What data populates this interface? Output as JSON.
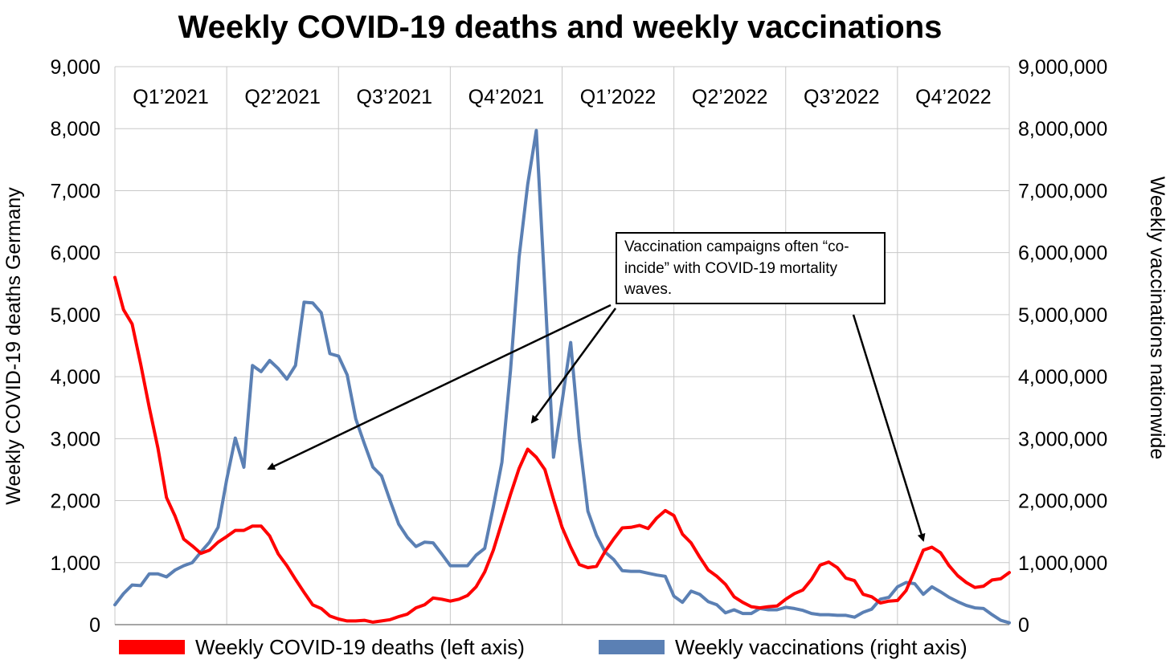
{
  "chart_data": {
    "type": "line",
    "title": "Weekly COVID-19 deaths and weekly vaccinations",
    "ylabel_left": "Weekly COVID-19 deaths Germany",
    "ylabel_right": "Weekly vaccinations nationwide",
    "ylim_left": [
      0,
      9000
    ],
    "ylim_right": [
      0,
      9000000
    ],
    "yticks_left": [
      0,
      1000,
      2000,
      3000,
      4000,
      5000,
      6000,
      7000,
      8000,
      9000
    ],
    "yticks_right": [
      0,
      1000000,
      2000000,
      3000000,
      4000000,
      5000000,
      6000000,
      7000000,
      8000000,
      9000000
    ],
    "ytick_labels_left": [
      "0",
      "1,000",
      "2,000",
      "3,000",
      "4,000",
      "5,000",
      "6,000",
      "7,000",
      "8,000",
      "9,000"
    ],
    "ytick_labels_right": [
      "0",
      "1,000,000",
      "2,000,000",
      "3,000,000",
      "4,000,000",
      "5,000,000",
      "6,000,000",
      "7,000,000",
      "8,000,000",
      "9,000,000"
    ],
    "quarters": [
      "Q1’2021",
      "Q2’2021",
      "Q3’2021",
      "Q4’2021",
      "Q1’2022",
      "Q2’2022",
      "Q3’2022",
      "Q4’2022"
    ],
    "grid": true,
    "legend_position": "bottom",
    "series": [
      {
        "name": "Weekly COVID-19 deaths (left axis)",
        "axis": "left",
        "color": "#ff0000",
        "x_week": [
          0,
          1,
          2,
          3,
          4,
          5,
          6,
          7,
          8,
          9,
          10,
          11,
          12,
          13,
          14,
          15,
          16,
          17,
          18,
          19,
          20,
          21,
          22,
          23,
          24,
          25,
          26,
          27,
          28,
          29,
          30,
          31,
          32,
          33,
          34,
          35,
          36,
          37,
          38,
          39,
          40,
          41,
          42,
          43,
          44,
          45,
          46,
          47,
          48,
          49,
          50,
          51,
          52,
          53,
          54,
          55,
          56,
          57,
          58,
          59,
          60,
          61,
          62,
          63,
          64,
          65,
          66,
          67,
          68,
          69,
          70,
          71,
          72,
          73,
          74,
          75,
          76,
          77,
          78,
          79,
          80,
          81,
          82,
          83,
          84,
          85,
          86,
          87,
          88,
          89,
          90,
          91,
          92,
          93,
          94,
          95,
          96,
          97,
          98,
          99,
          100,
          101,
          102,
          103,
          104
        ],
        "values": [
          5600,
          5080,
          4850,
          4200,
          3500,
          2850,
          2050,
          1750,
          1380,
          1270,
          1150,
          1200,
          1330,
          1420,
          1520,
          1520,
          1590,
          1590,
          1430,
          1140,
          950,
          730,
          520,
          320,
          260,
          140,
          90,
          60,
          60,
          70,
          40,
          60,
          80,
          130,
          170,
          270,
          320,
          430,
          410,
          380,
          410,
          470,
          610,
          850,
          1200,
          1650,
          2100,
          2520,
          2830,
          2700,
          2500,
          2020,
          1570,
          1250,
          970,
          920,
          940,
          1180,
          1380,
          1560,
          1570,
          1600,
          1550,
          1720,
          1840,
          1760,
          1460,
          1320,
          1090,
          880,
          780,
          650,
          450,
          360,
          290,
          270,
          290,
          300,
          410,
          500,
          560,
          730,
          960,
          1010,
          920,
          750,
          710,
          490,
          450,
          350,
          380,
          390,
          550,
          870,
          1200,
          1250,
          1160,
          950,
          790,
          680,
          600,
          620,
          720,
          740,
          840
        ]
      },
      {
        "name": "Weekly vaccinations (right axis)",
        "axis": "right",
        "color": "#5b80b4",
        "x_week": [
          0,
          1,
          2,
          3,
          4,
          5,
          6,
          7,
          8,
          9,
          10,
          11,
          12,
          13,
          14,
          15,
          16,
          17,
          18,
          19,
          20,
          21,
          22,
          23,
          24,
          25,
          26,
          27,
          28,
          29,
          30,
          31,
          32,
          33,
          34,
          35,
          36,
          37,
          38,
          39,
          40,
          41,
          42,
          43,
          44,
          45,
          46,
          47,
          48,
          49,
          50,
          51,
          52,
          53,
          54,
          55,
          56,
          57,
          58,
          59,
          60,
          61,
          62,
          63,
          64,
          65,
          66,
          67,
          68,
          69,
          70,
          71,
          72,
          73,
          74,
          75,
          76,
          77,
          78,
          79,
          80,
          81,
          82,
          83,
          84,
          85,
          86,
          87,
          88,
          89,
          90,
          91,
          92,
          93,
          94,
          95,
          96,
          97,
          98,
          99,
          100,
          101,
          102,
          103,
          104
        ],
        "values": [
          320000,
          500000,
          640000,
          630000,
          820000,
          820000,
          770000,
          880000,
          950000,
          1000000,
          1170000,
          1330000,
          1570000,
          2340000,
          3010000,
          2540000,
          4180000,
          4080000,
          4260000,
          4130000,
          3960000,
          4180000,
          5200000,
          5190000,
          5030000,
          4370000,
          4330000,
          4030000,
          3320000,
          2920000,
          2540000,
          2400000,
          2000000,
          1620000,
          1410000,
          1260000,
          1330000,
          1320000,
          1140000,
          950000,
          950000,
          950000,
          1120000,
          1230000,
          1900000,
          2620000,
          4100000,
          5930000,
          7100000,
          7970000,
          5400000,
          2700000,
          3600000,
          4550000,
          3000000,
          1830000,
          1440000,
          1170000,
          1050000,
          870000,
          860000,
          860000,
          830000,
          800000,
          780000,
          460000,
          360000,
          540000,
          490000,
          370000,
          320000,
          190000,
          240000,
          180000,
          180000,
          260000,
          240000,
          240000,
          280000,
          260000,
          230000,
          180000,
          160000,
          160000,
          150000,
          150000,
          120000,
          200000,
          250000,
          410000,
          440000,
          610000,
          680000,
          660000,
          490000,
          610000,
          530000,
          440000,
          370000,
          310000,
          270000,
          260000,
          160000,
          70000,
          30000
        ]
      }
    ],
    "annotations": [
      {
        "text_lines": [
          "Vaccination campaigns often “co-",
          "incide” with COVID-19 mortality",
          "waves."
        ]
      }
    ]
  }
}
